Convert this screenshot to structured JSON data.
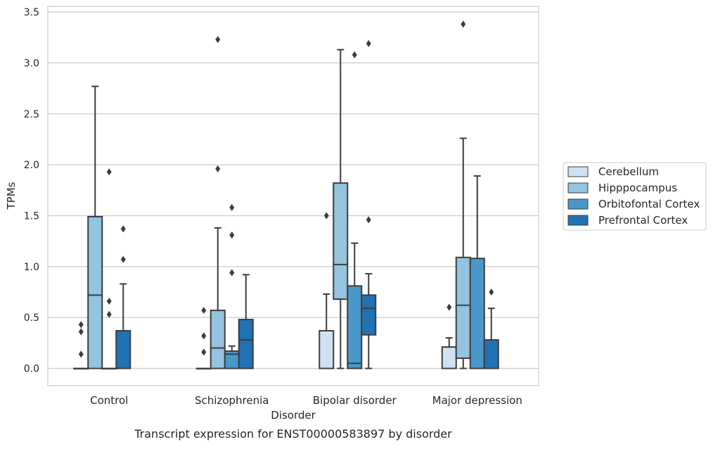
{
  "caption": "Transcript expression for ENST00000583897 by disorder",
  "chart_data": {
    "type": "box",
    "xlabel": "Disorder",
    "ylabel": "TPMs",
    "categories": [
      "Control",
      "Schizophrenia",
      "Bipolar disorder",
      "Major depression"
    ],
    "ylim": [
      -0.17,
      3.56
    ],
    "yticks": [
      "0.0",
      "0.5",
      "1.0",
      "1.5",
      "2.0",
      "2.5",
      "3.0",
      "3.5"
    ],
    "grid": "horizontal",
    "legend_position": "outside-right",
    "series": [
      {
        "name": "Cerebellum",
        "color": "#d0e1f2",
        "boxes": [
          {
            "min": 0,
            "q1": 0,
            "median": 0,
            "q3": 0,
            "max": 0,
            "outliers": [
              0.14,
              0.36,
              0.43
            ]
          },
          {
            "min": 0,
            "q1": 0,
            "median": 0,
            "q3": 0,
            "max": 0,
            "outliers": [
              0.16,
              0.32,
              0.57
            ]
          },
          {
            "min": 0,
            "q1": 0,
            "median": 0,
            "q3": 0.37,
            "max": 0.73,
            "outliers": [
              1.5
            ]
          },
          {
            "min": 0,
            "q1": 0,
            "median": 0,
            "q3": 0.21,
            "max": 0.3,
            "outliers": [
              0.6
            ]
          }
        ]
      },
      {
        "name": "Hipppocampus",
        "color": "#94c4df",
        "boxes": [
          {
            "min": 0,
            "q1": 0,
            "median": 0.72,
            "q3": 1.49,
            "max": 2.77,
            "outliers": []
          },
          {
            "min": 0,
            "q1": 0,
            "median": 0.2,
            "q3": 0.57,
            "max": 1.38,
            "outliers": [
              1.96,
              3.23
            ]
          },
          {
            "min": 0,
            "q1": 0.68,
            "median": 1.02,
            "q3": 1.82,
            "max": 3.13,
            "outliers": []
          },
          {
            "min": 0,
            "q1": 0.1,
            "median": 0.62,
            "q3": 1.09,
            "max": 2.26,
            "outliers": [
              3.38
            ]
          }
        ]
      },
      {
        "name": "Orbitofontal Cortex",
        "color": "#4a98c9",
        "boxes": [
          {
            "min": 0,
            "q1": 0,
            "median": 0,
            "q3": 0,
            "max": 0,
            "outliers": [
              0.53,
              0.66,
              1.93
            ]
          },
          {
            "min": 0,
            "q1": 0,
            "median": 0.14,
            "q3": 0.17,
            "max": 0.22,
            "outliers": [
              0.94,
              1.31,
              1.58
            ]
          },
          {
            "min": 0,
            "q1": 0,
            "median": 0.05,
            "q3": 0.81,
            "max": 1.23,
            "outliers": [
              3.08
            ]
          },
          {
            "min": 0,
            "q1": 0,
            "median": 0,
            "q3": 1.08,
            "max": 1.89,
            "outliers": []
          }
        ]
      },
      {
        "name": "Prefrontal Cortex",
        "color": "#2171b5",
        "boxes": [
          {
            "min": 0,
            "q1": 0,
            "median": 0,
            "q3": 0.37,
            "max": 0.83,
            "outliers": [
              1.07,
              1.37
            ]
          },
          {
            "min": 0,
            "q1": 0,
            "median": 0.28,
            "q3": 0.48,
            "max": 0.92,
            "outliers": []
          },
          {
            "min": 0,
            "q1": 0.33,
            "median": 0.59,
            "q3": 0.72,
            "max": 0.93,
            "outliers": [
              1.46,
              3.19
            ]
          },
          {
            "min": 0,
            "q1": 0,
            "median": 0,
            "q3": 0.28,
            "max": 0.59,
            "outliers": [
              0.75
            ]
          }
        ]
      }
    ]
  }
}
